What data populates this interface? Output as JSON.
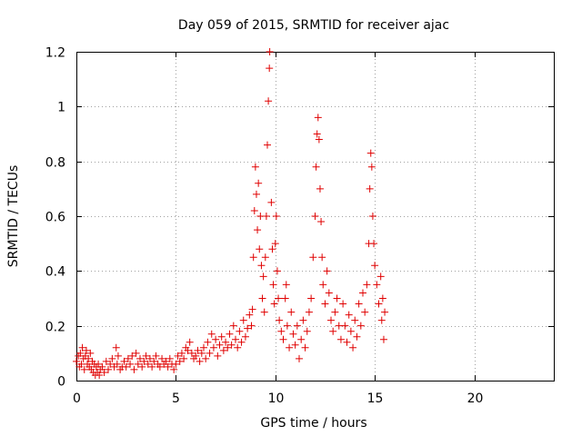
{
  "chart_data": {
    "type": "scatter",
    "title": "Day 059 of 2015, SRMTID for receiver ajac",
    "xlabel": "GPS time / hours",
    "ylabel": "SRMTID / TECUs",
    "xlim": [
      0,
      24
    ],
    "ylim": [
      0,
      1.2
    ],
    "x_ticks": [
      0,
      5,
      10,
      15,
      20
    ],
    "x_tick_labels": [
      "0",
      "5",
      "10",
      "15",
      "20"
    ],
    "y_ticks": [
      0,
      0.2,
      0.4,
      0.6,
      0.8,
      1.0,
      1.2
    ],
    "y_tick_labels": [
      "0",
      "0.2",
      "0.4",
      "0.6",
      "0.8",
      "1",
      "1.2"
    ],
    "grid": true,
    "marker": "plus",
    "series": [
      {
        "name": "SRMTID",
        "color": "#e00000",
        "points": [
          [
            0.0,
            0.07
          ],
          [
            0.1,
            0.09
          ],
          [
            0.15,
            0.05
          ],
          [
            0.2,
            0.1
          ],
          [
            0.25,
            0.06
          ],
          [
            0.3,
            0.12
          ],
          [
            0.35,
            0.08
          ],
          [
            0.4,
            0.04
          ],
          [
            0.45,
            0.09
          ],
          [
            0.5,
            0.11
          ],
          [
            0.55,
            0.06
          ],
          [
            0.6,
            0.08
          ],
          [
            0.65,
            0.05
          ],
          [
            0.7,
            0.1
          ],
          [
            0.75,
            0.04
          ],
          [
            0.8,
            0.07
          ],
          [
            0.85,
            0.03
          ],
          [
            0.9,
            0.06
          ],
          [
            0.95,
            0.02
          ],
          [
            1.0,
            0.05
          ],
          [
            1.05,
            0.03
          ],
          [
            1.1,
            0.06
          ],
          [
            1.15,
            0.02
          ],
          [
            1.2,
            0.04
          ],
          [
            1.3,
            0.05
          ],
          [
            1.4,
            0.03
          ],
          [
            1.5,
            0.07
          ],
          [
            1.6,
            0.04
          ],
          [
            1.7,
            0.06
          ],
          [
            1.8,
            0.08
          ],
          [
            1.9,
            0.05
          ],
          [
            2.0,
            0.12
          ],
          [
            2.05,
            0.06
          ],
          [
            2.1,
            0.09
          ],
          [
            2.2,
            0.04
          ],
          [
            2.3,
            0.05
          ],
          [
            2.4,
            0.07
          ],
          [
            2.5,
            0.05
          ],
          [
            2.6,
            0.08
          ],
          [
            2.7,
            0.06
          ],
          [
            2.8,
            0.09
          ],
          [
            2.9,
            0.04
          ],
          [
            3.0,
            0.1
          ],
          [
            3.1,
            0.06
          ],
          [
            3.2,
            0.08
          ],
          [
            3.3,
            0.05
          ],
          [
            3.4,
            0.07
          ],
          [
            3.5,
            0.09
          ],
          [
            3.6,
            0.06
          ],
          [
            3.7,
            0.08
          ],
          [
            3.8,
            0.05
          ],
          [
            3.9,
            0.07
          ],
          [
            4.0,
            0.09
          ],
          [
            4.1,
            0.06
          ],
          [
            4.2,
            0.05
          ],
          [
            4.3,
            0.08
          ],
          [
            4.4,
            0.06
          ],
          [
            4.5,
            0.07
          ],
          [
            4.6,
            0.05
          ],
          [
            4.7,
            0.08
          ],
          [
            4.8,
            0.06
          ],
          [
            4.9,
            0.04
          ],
          [
            5.0,
            0.06
          ],
          [
            5.1,
            0.09
          ],
          [
            5.2,
            0.07
          ],
          [
            5.3,
            0.1
          ],
          [
            5.4,
            0.08
          ],
          [
            5.5,
            0.12
          ],
          [
            5.6,
            0.11
          ],
          [
            5.7,
            0.14
          ],
          [
            5.8,
            0.1
          ],
          [
            5.9,
            0.08
          ],
          [
            6.0,
            0.09
          ],
          [
            6.1,
            0.11
          ],
          [
            6.2,
            0.07
          ],
          [
            6.3,
            0.1
          ],
          [
            6.4,
            0.12
          ],
          [
            6.5,
            0.08
          ],
          [
            6.6,
            0.14
          ],
          [
            6.7,
            0.1
          ],
          [
            6.8,
            0.17
          ],
          [
            6.9,
            0.12
          ],
          [
            7.0,
            0.15
          ],
          [
            7.1,
            0.09
          ],
          [
            7.2,
            0.13
          ],
          [
            7.3,
            0.16
          ],
          [
            7.4,
            0.11
          ],
          [
            7.5,
            0.14
          ],
          [
            7.6,
            0.12
          ],
          [
            7.7,
            0.17
          ],
          [
            7.8,
            0.13
          ],
          [
            7.9,
            0.2
          ],
          [
            8.0,
            0.15
          ],
          [
            8.1,
            0.12
          ],
          [
            8.2,
            0.18
          ],
          [
            8.3,
            0.14
          ],
          [
            8.4,
            0.22
          ],
          [
            8.5,
            0.16
          ],
          [
            8.6,
            0.19
          ],
          [
            8.7,
            0.24
          ],
          [
            8.8,
            0.2
          ],
          [
            8.85,
            0.26
          ],
          [
            8.9,
            0.45
          ],
          [
            8.95,
            0.62
          ],
          [
            9.0,
            0.78
          ],
          [
            9.05,
            0.68
          ],
          [
            9.1,
            0.55
          ],
          [
            9.15,
            0.72
          ],
          [
            9.2,
            0.48
          ],
          [
            9.25,
            0.6
          ],
          [
            9.3,
            0.42
          ],
          [
            9.35,
            0.3
          ],
          [
            9.4,
            0.38
          ],
          [
            9.45,
            0.25
          ],
          [
            9.5,
            0.45
          ],
          [
            9.55,
            0.6
          ],
          [
            9.6,
            0.86
          ],
          [
            9.65,
            1.02
          ],
          [
            9.7,
            1.14
          ],
          [
            9.72,
            1.2
          ],
          [
            9.8,
            0.65
          ],
          [
            9.85,
            0.48
          ],
          [
            9.9,
            0.35
          ],
          [
            9.95,
            0.28
          ],
          [
            10.0,
            0.5
          ],
          [
            10.05,
            0.6
          ],
          [
            10.1,
            0.4
          ],
          [
            10.15,
            0.3
          ],
          [
            10.2,
            0.22
          ],
          [
            10.3,
            0.18
          ],
          [
            10.4,
            0.15
          ],
          [
            10.5,
            0.3
          ],
          [
            10.55,
            0.35
          ],
          [
            10.6,
            0.2
          ],
          [
            10.7,
            0.12
          ],
          [
            10.8,
            0.25
          ],
          [
            10.9,
            0.17
          ],
          [
            11.0,
            0.13
          ],
          [
            11.1,
            0.2
          ],
          [
            11.2,
            0.08
          ],
          [
            11.3,
            0.15
          ],
          [
            11.4,
            0.22
          ],
          [
            11.5,
            0.12
          ],
          [
            11.6,
            0.18
          ],
          [
            11.7,
            0.25
          ],
          [
            11.8,
            0.3
          ],
          [
            11.9,
            0.45
          ],
          [
            12.0,
            0.6
          ],
          [
            12.05,
            0.78
          ],
          [
            12.1,
            0.9
          ],
          [
            12.15,
            0.96
          ],
          [
            12.2,
            0.88
          ],
          [
            12.25,
            0.7
          ],
          [
            12.3,
            0.58
          ],
          [
            12.35,
            0.45
          ],
          [
            12.4,
            0.35
          ],
          [
            12.5,
            0.28
          ],
          [
            12.6,
            0.4
          ],
          [
            12.7,
            0.32
          ],
          [
            12.8,
            0.22
          ],
          [
            12.9,
            0.18
          ],
          [
            13.0,
            0.25
          ],
          [
            13.1,
            0.3
          ],
          [
            13.2,
            0.2
          ],
          [
            13.3,
            0.15
          ],
          [
            13.4,
            0.28
          ],
          [
            13.5,
            0.2
          ],
          [
            13.6,
            0.14
          ],
          [
            13.7,
            0.24
          ],
          [
            13.8,
            0.18
          ],
          [
            13.9,
            0.12
          ],
          [
            14.0,
            0.22
          ],
          [
            14.1,
            0.16
          ],
          [
            14.2,
            0.28
          ],
          [
            14.3,
            0.2
          ],
          [
            14.4,
            0.32
          ],
          [
            14.5,
            0.25
          ],
          [
            14.6,
            0.35
          ],
          [
            14.7,
            0.5
          ],
          [
            14.75,
            0.7
          ],
          [
            14.8,
            0.83
          ],
          [
            14.85,
            0.78
          ],
          [
            14.9,
            0.6
          ],
          [
            14.95,
            0.5
          ],
          [
            15.0,
            0.42
          ],
          [
            15.1,
            0.35
          ],
          [
            15.2,
            0.28
          ],
          [
            15.3,
            0.38
          ],
          [
            15.35,
            0.22
          ],
          [
            15.4,
            0.3
          ],
          [
            15.45,
            0.15
          ],
          [
            15.5,
            0.25
          ]
        ]
      }
    ]
  }
}
